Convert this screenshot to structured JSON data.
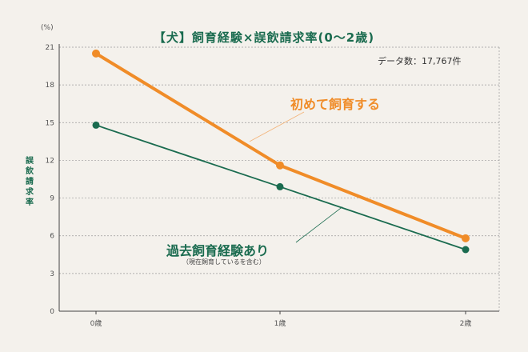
{
  "title": "【犬】飼育経験×誤飲請求率(0～2歳)",
  "unit": "(%)",
  "ylabel": "誤飲請求率",
  "data_count": "データ数：17,767件",
  "colors": {
    "first": "#f08c28",
    "experienced": "#1a6b4f",
    "grid": "#9a9a9a"
  },
  "chart_data": {
    "type": "line",
    "categories": [
      "0歳",
      "1歳",
      "2歳"
    ],
    "yticks": [
      "0",
      "3",
      "6",
      "9",
      "12",
      "15",
      "18",
      "21"
    ],
    "ylim": [
      0,
      21
    ],
    "grid": true,
    "series": [
      {
        "name": "初めて飼育する",
        "values": [
          20.5,
          11.6,
          5.8
        ]
      },
      {
        "name": "過去飼育経験あり",
        "subname": "（現在飼育しているを含む）",
        "values": [
          14.8,
          9.9,
          4.9
        ]
      }
    ]
  }
}
